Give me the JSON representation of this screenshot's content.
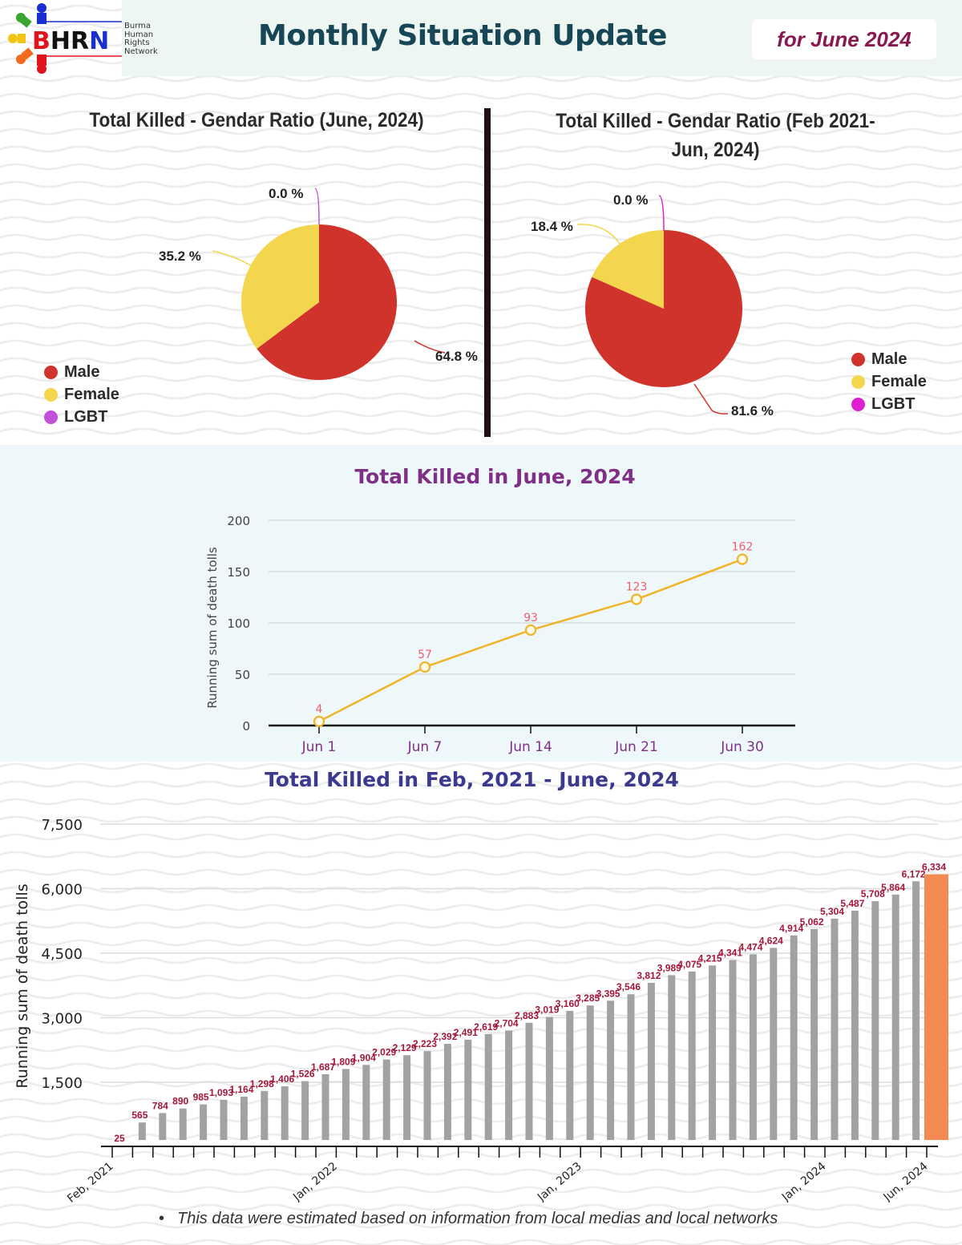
{
  "header": {
    "logo_acronym": [
      "B",
      "H",
      "R",
      "N"
    ],
    "logo_subtitle": [
      "Burma",
      "Human",
      "Rights",
      "Network"
    ],
    "title": "Monthly Situation Update",
    "date_label": "for June 2024"
  },
  "colors": {
    "male": "#d0332b",
    "female": "#f3d64e",
    "lgbt_left": "#c152d9",
    "lgbt_right": "#dd1fd0",
    "line": "#f0b429",
    "line_label": "#ef5d6e",
    "bar": "#a2a2a2",
    "bar_highlight": "#f28a52",
    "bar_label": "#a4163a",
    "title_june": "#7f2f86",
    "title_total": "#3b3a8e",
    "axis_month": "#7f2f86"
  },
  "footnote": "This data were estimated based on information from local medias and local networks",
  "chart_data": [
    {
      "type": "pie",
      "title": "Total Killed - Gendar Ratio (June, 2024)",
      "labels": [
        "Male",
        "Female",
        "LGBT"
      ],
      "values": [
        64.8,
        35.2,
        0.0
      ],
      "value_labels": [
        "64.8 %",
        "35.2 %",
        "0.0 %"
      ],
      "legend": [
        "Male",
        "Female",
        "LGBT"
      ],
      "legend_position": "bottom-left"
    },
    {
      "type": "pie",
      "title": "Total Killed - Gendar Ratio (Feb 2021-Jun, 2024)",
      "title_lines": [
        "Total Killed - Gendar Ratio (Feb 2021-",
        "Jun, 2024)"
      ],
      "labels": [
        "Male",
        "Female",
        "LGBT"
      ],
      "values": [
        81.6,
        18.4,
        0.0
      ],
      "value_labels": [
        "81.6 %",
        "18.4 %",
        "0.0 %"
      ],
      "legend": [
        "Male",
        "Female",
        "LGBT"
      ],
      "legend_position": "bottom-right"
    },
    {
      "type": "line",
      "title": "Total Killed in June, 2024",
      "categories": [
        "Jun 1",
        "Jun 7",
        "Jun 14",
        "Jun 21",
        "Jun 30"
      ],
      "values": [
        4,
        57,
        93,
        123,
        162
      ],
      "xlabel": "",
      "ylabel": "Running sum of death tolls",
      "ylim": [
        0,
        200
      ],
      "yticks": [
        "0",
        "50",
        "100",
        "150",
        "200"
      ],
      "grid": true
    },
    {
      "type": "bar",
      "title": "Total Killed in Feb, 2021 - June, 2024",
      "xlabel": "",
      "ylabel": "Running sum of death tolls",
      "ylim": [
        0,
        7500
      ],
      "yticks": [
        "1,500",
        "3,000",
        "4,500",
        "6,000",
        "7,500"
      ],
      "x_tick_labels": [
        {
          "index": 0,
          "label": "Feb, 2021"
        },
        {
          "index": 11,
          "label": "Jan, 2022"
        },
        {
          "index": 23,
          "label": "Jan, 2023"
        },
        {
          "index": 35,
          "label": "Jan, 2024"
        },
        {
          "index": 40,
          "label": "Jun, 2024"
        }
      ],
      "values": [
        25,
        565,
        784,
        890,
        985,
        1093,
        1164,
        1298,
        1406,
        1526,
        1687,
        1809,
        1904,
        2029,
        2129,
        2223,
        2392,
        2491,
        2619,
        2704,
        2883,
        3019,
        3160,
        3285,
        3395,
        3546,
        3812,
        3989,
        4075,
        4215,
        4341,
        4474,
        4624,
        4914,
        5062,
        5304,
        5487,
        5708,
        5864,
        6172,
        6334
      ],
      "value_labels": [
        "25",
        "565",
        "784",
        "890",
        "985",
        "1,093",
        "1,164",
        "1,298",
        "1,406",
        "1,526",
        "1,687",
        "1,809",
        "1,904",
        "2,029",
        "2,129",
        "2,223",
        "2,392",
        "2,491",
        "2,619",
        "2,704",
        "2,883",
        "3,019",
        "3,160",
        "3,285",
        "3,395",
        "3,546",
        "3,812",
        "3,989",
        "4,075",
        "4,215",
        "4,341",
        "4,474",
        "4,624",
        "4,914",
        "5,062",
        "5,304",
        "5,487",
        "5,708",
        "5,864",
        "6,172",
        "6,334"
      ],
      "highlight_index": 40,
      "grid": true
    }
  ]
}
